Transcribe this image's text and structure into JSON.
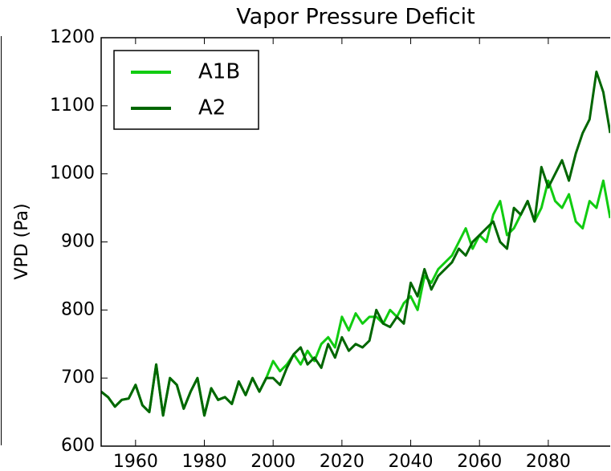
{
  "chart_data": {
    "type": "line",
    "title": "Vapor Pressure Deficit",
    "y_label": "VPD (Pa)",
    "x": [
      1950,
      1952,
      1954,
      1956,
      1958,
      1960,
      1962,
      1964,
      1966,
      1968,
      1970,
      1972,
      1974,
      1976,
      1978,
      1980,
      1982,
      1984,
      1986,
      1988,
      1990,
      1992,
      1994,
      1996,
      1998,
      2000,
      2002,
      2004,
      2006,
      2008,
      2010,
      2012,
      2014,
      2016,
      2018,
      2020,
      2022,
      2024,
      2026,
      2028,
      2030,
      2032,
      2034,
      2036,
      2038,
      2040,
      2042,
      2044,
      2046,
      2048,
      2050,
      2052,
      2054,
      2056,
      2058,
      2060,
      2062,
      2064,
      2066,
      2068,
      2070,
      2072,
      2074,
      2076,
      2078,
      2080,
      2082,
      2084,
      2086,
      2088,
      2090,
      2092,
      2094,
      2096,
      2098
    ],
    "series": [
      {
        "name": "A1B",
        "color": "#11cc11",
        "values": [
          680,
          672,
          658,
          668,
          670,
          690,
          660,
          650,
          720,
          645,
          700,
          690,
          655,
          680,
          700,
          645,
          685,
          668,
          672,
          662,
          695,
          675,
          700,
          680,
          700,
          725,
          710,
          720,
          735,
          720,
          740,
          725,
          750,
          760,
          745,
          790,
          770,
          795,
          780,
          790,
          790,
          780,
          800,
          790,
          810,
          820,
          800,
          850,
          840,
          860,
          870,
          880,
          900,
          920,
          890,
          910,
          900,
          940,
          960,
          910,
          920,
          940,
          960,
          930,
          950,
          990,
          960,
          950,
          970,
          930,
          920,
          960,
          950,
          990,
          935
        ]
      },
      {
        "name": "A2",
        "color": "#006600",
        "values": [
          680,
          672,
          658,
          668,
          670,
          690,
          660,
          650,
          720,
          645,
          700,
          690,
          655,
          680,
          700,
          645,
          685,
          668,
          672,
          662,
          695,
          675,
          700,
          680,
          700,
          700,
          690,
          715,
          735,
          745,
          720,
          730,
          715,
          750,
          730,
          760,
          740,
          750,
          745,
          755,
          800,
          780,
          775,
          790,
          780,
          840,
          820,
          860,
          830,
          850,
          860,
          870,
          890,
          880,
          900,
          910,
          920,
          930,
          900,
          890,
          950,
          940,
          960,
          930,
          1010,
          980,
          1000,
          1020,
          990,
          1030,
          1060,
          1080,
          1150,
          1120,
          1060
        ]
      }
    ],
    "xlim": [
      1950,
      2098
    ],
    "ylim": [
      600,
      1200
    ],
    "xticks": [
      1960,
      1980,
      2000,
      2020,
      2040,
      2060,
      2080
    ],
    "yticks": [
      600,
      700,
      800,
      900,
      1000,
      1100,
      1200
    ],
    "legend": "upper left"
  }
}
